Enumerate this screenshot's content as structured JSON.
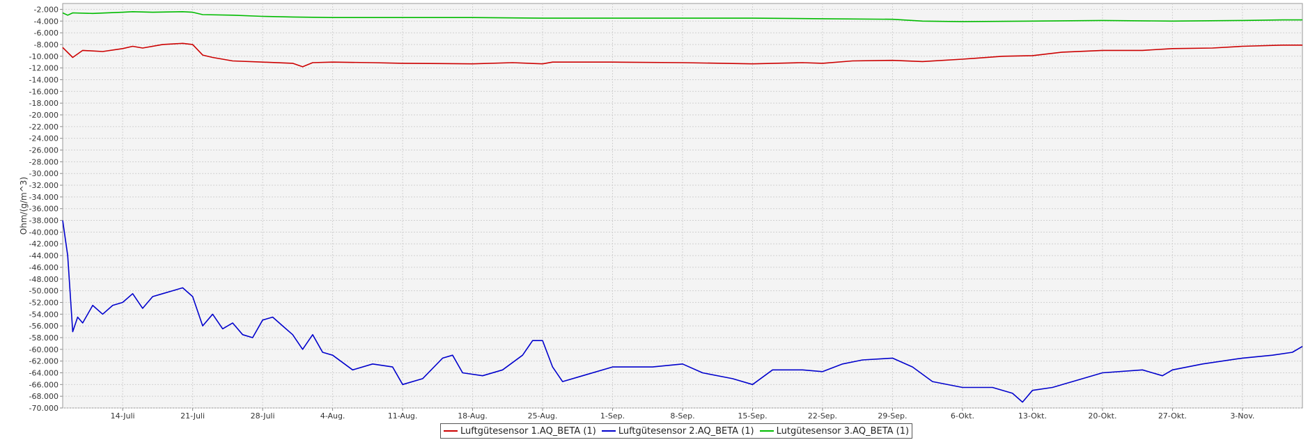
{
  "chart_data": {
    "type": "line",
    "ylabel": "Ohm/(g/m^3)",
    "xlabel": "",
    "title": "",
    "ylim": [
      -70000,
      -1000
    ],
    "y_ticks": [
      -2000,
      -4000,
      -6000,
      -8000,
      -10000,
      -12000,
      -14000,
      -16000,
      -18000,
      -20000,
      -22000,
      -24000,
      -26000,
      -28000,
      -30000,
      -32000,
      -34000,
      -36000,
      -38000,
      -40000,
      -42000,
      -44000,
      -46000,
      -48000,
      -50000,
      -52000,
      -54000,
      -56000,
      -58000,
      -60000,
      -62000,
      -64000,
      -66000,
      -68000,
      -70000
    ],
    "y_tick_labels": [
      "-2.000",
      "-4.000",
      "-6.000",
      "-8.000",
      "-10.000",
      "-12.000",
      "-14.000",
      "-16.000",
      "-18.000",
      "-20.000",
      "-22.000",
      "-24.000",
      "-26.000",
      "-28.000",
      "-30.000",
      "-32.000",
      "-34.000",
      "-36.000",
      "-38.000",
      "-40.000",
      "-42.000",
      "-44.000",
      "-46.000",
      "-48.000",
      "-50.000",
      "-52.000",
      "-54.000",
      "-56.000",
      "-58.000",
      "-60.000",
      "-62.000",
      "-64.000",
      "-66.000",
      "-68.000",
      "-70.000"
    ],
    "xlim": [
      "2014-07-08",
      "2014-11-09"
    ],
    "x_ticks": [
      "2014-07-14",
      "2014-07-21",
      "2014-07-28",
      "2014-08-04",
      "2014-08-11",
      "2014-08-18",
      "2014-08-25",
      "2014-09-01",
      "2014-09-08",
      "2014-09-15",
      "2014-09-22",
      "2014-09-29",
      "2014-10-06",
      "2014-10-13",
      "2014-10-20",
      "2014-10-27",
      "2014-11-03"
    ],
    "x_tick_labels": [
      "14-Juli",
      "21-Juli",
      "28-Juli",
      "4-Aug.",
      "11-Aug.",
      "18-Aug.",
      "25-Aug.",
      "1-Sep.",
      "8-Sep.",
      "15-Sep.",
      "22-Sep.",
      "29-Sep.",
      "6-Okt.",
      "13-Okt.",
      "20-Okt.",
      "27-Okt.",
      "3-Nov."
    ],
    "grid": true,
    "legend_position": "bottom",
    "series": [
      {
        "name": "Luftgütesensor 1.AQ_BETA (1)",
        "color": "#cc0000",
        "points": [
          [
            "2014-07-08",
            -8500
          ],
          [
            "2014-07-09",
            -10200
          ],
          [
            "2014-07-10",
            -9000
          ],
          [
            "2014-07-12",
            -9200
          ],
          [
            "2014-07-14",
            -8700
          ],
          [
            "2014-07-15",
            -8300
          ],
          [
            "2014-07-16",
            -8600
          ],
          [
            "2014-07-18",
            -8000
          ],
          [
            "2014-07-20",
            -7800
          ],
          [
            "2014-07-21",
            -8000
          ],
          [
            "2014-07-22",
            -9800
          ],
          [
            "2014-07-23",
            -10200
          ],
          [
            "2014-07-25",
            -10800
          ],
          [
            "2014-07-28",
            -11000
          ],
          [
            "2014-07-31",
            -11200
          ],
          [
            "2014-08-01",
            -11800
          ],
          [
            "2014-08-02",
            -11100
          ],
          [
            "2014-08-04",
            -11000
          ],
          [
            "2014-08-08",
            -11100
          ],
          [
            "2014-08-11",
            -11200
          ],
          [
            "2014-08-18",
            -11300
          ],
          [
            "2014-08-22",
            -11100
          ],
          [
            "2014-08-25",
            -11300
          ],
          [
            "2014-08-26",
            -11000
          ],
          [
            "2014-09-01",
            -11000
          ],
          [
            "2014-09-08",
            -11100
          ],
          [
            "2014-09-15",
            -11300
          ],
          [
            "2014-09-20",
            -11100
          ],
          [
            "2014-09-22",
            -11200
          ],
          [
            "2014-09-25",
            -10800
          ],
          [
            "2014-09-29",
            -10700
          ],
          [
            "2014-10-02",
            -10900
          ],
          [
            "2014-10-06",
            -10500
          ],
          [
            "2014-10-10",
            -10000
          ],
          [
            "2014-10-13",
            -9900
          ],
          [
            "2014-10-16",
            -9300
          ],
          [
            "2014-10-20",
            -9000
          ],
          [
            "2014-10-24",
            -9000
          ],
          [
            "2014-10-27",
            -8700
          ],
          [
            "2014-10-31",
            -8600
          ],
          [
            "2014-11-03",
            -8300
          ],
          [
            "2014-11-07",
            -8100
          ],
          [
            "2014-11-09",
            -8100
          ]
        ]
      },
      {
        "name": "Luftgütesensor 2.AQ_BETA (1)",
        "color": "#0000cc",
        "points": [
          [
            "2014-07-08",
            -38000
          ],
          [
            "2014-07-08T12:00",
            -44000
          ],
          [
            "2014-07-09",
            -57000
          ],
          [
            "2014-07-09T12:00",
            -54500
          ],
          [
            "2014-07-10",
            -55500
          ],
          [
            "2014-07-11",
            -52500
          ],
          [
            "2014-07-12",
            -54000
          ],
          [
            "2014-07-13",
            -52500
          ],
          [
            "2014-07-14",
            -52000
          ],
          [
            "2014-07-15",
            -50500
          ],
          [
            "2014-07-16",
            -53000
          ],
          [
            "2014-07-17",
            -51000
          ],
          [
            "2014-07-18",
            -50500
          ],
          [
            "2014-07-19",
            -50000
          ],
          [
            "2014-07-20",
            -49500
          ],
          [
            "2014-07-21",
            -51000
          ],
          [
            "2014-07-22",
            -56000
          ],
          [
            "2014-07-23",
            -54000
          ],
          [
            "2014-07-24",
            -56500
          ],
          [
            "2014-07-25",
            -55500
          ],
          [
            "2014-07-26",
            -57500
          ],
          [
            "2014-07-27",
            -58000
          ],
          [
            "2014-07-28",
            -55000
          ],
          [
            "2014-07-29",
            -54500
          ],
          [
            "2014-07-30",
            -56000
          ],
          [
            "2014-07-31",
            -57500
          ],
          [
            "2014-08-01",
            -60000
          ],
          [
            "2014-08-02",
            -57500
          ],
          [
            "2014-08-03",
            -60500
          ],
          [
            "2014-08-04",
            -61000
          ],
          [
            "2014-08-06",
            -63500
          ],
          [
            "2014-08-08",
            -62500
          ],
          [
            "2014-08-10",
            -63000
          ],
          [
            "2014-08-11",
            -66000
          ],
          [
            "2014-08-13",
            -65000
          ],
          [
            "2014-08-15",
            -61500
          ],
          [
            "2014-08-16",
            -61000
          ],
          [
            "2014-08-17",
            -64000
          ],
          [
            "2014-08-19",
            -64500
          ],
          [
            "2014-08-21",
            -63500
          ],
          [
            "2014-08-23",
            -61000
          ],
          [
            "2014-08-24",
            -58500
          ],
          [
            "2014-08-25",
            -58500
          ],
          [
            "2014-08-26",
            -63000
          ],
          [
            "2014-08-27",
            -65500
          ],
          [
            "2014-08-29",
            -64500
          ],
          [
            "2014-09-01",
            -63000
          ],
          [
            "2014-09-05",
            -63000
          ],
          [
            "2014-09-08",
            -62500
          ],
          [
            "2014-09-10",
            -64000
          ],
          [
            "2014-09-13",
            -65000
          ],
          [
            "2014-09-15",
            -66000
          ],
          [
            "2014-09-17",
            -63500
          ],
          [
            "2014-09-20",
            -63500
          ],
          [
            "2014-09-22",
            -63800
          ],
          [
            "2014-09-24",
            -62500
          ],
          [
            "2014-09-26",
            -61800
          ],
          [
            "2014-09-29",
            -61500
          ],
          [
            "2014-10-01",
            -63000
          ],
          [
            "2014-10-03",
            -65500
          ],
          [
            "2014-10-06",
            -66500
          ],
          [
            "2014-10-09",
            -66500
          ],
          [
            "2014-10-11",
            -67500
          ],
          [
            "2014-10-12",
            -69000
          ],
          [
            "2014-10-13",
            -67000
          ],
          [
            "2014-10-15",
            -66500
          ],
          [
            "2014-10-17",
            -65500
          ],
          [
            "2014-10-20",
            -64000
          ],
          [
            "2014-10-24",
            -63500
          ],
          [
            "2014-10-26",
            -64500
          ],
          [
            "2014-10-27",
            -63500
          ],
          [
            "2014-10-30",
            -62500
          ],
          [
            "2014-11-03",
            -61500
          ],
          [
            "2014-11-06",
            -61000
          ],
          [
            "2014-11-08",
            -60500
          ],
          [
            "2014-11-09",
            -59500
          ]
        ]
      },
      {
        "name": "Lutgütesensor 3.AQ_BETA (1)",
        "color": "#00bb00",
        "points": [
          [
            "2014-07-08",
            -2600
          ],
          [
            "2014-07-08T12:00",
            -3000
          ],
          [
            "2014-07-09",
            -2600
          ],
          [
            "2014-07-11",
            -2700
          ],
          [
            "2014-07-14",
            -2500
          ],
          [
            "2014-07-15",
            -2400
          ],
          [
            "2014-07-17",
            -2500
          ],
          [
            "2014-07-20",
            -2400
          ],
          [
            "2014-07-21",
            -2500
          ],
          [
            "2014-07-22",
            -2900
          ],
          [
            "2014-07-25",
            -3000
          ],
          [
            "2014-07-28",
            -3200
          ],
          [
            "2014-07-31",
            -3300
          ],
          [
            "2014-08-04",
            -3400
          ],
          [
            "2014-08-11",
            -3400
          ],
          [
            "2014-08-18",
            -3400
          ],
          [
            "2014-08-25",
            -3500
          ],
          [
            "2014-09-01",
            -3500
          ],
          [
            "2014-09-08",
            -3500
          ],
          [
            "2014-09-15",
            -3500
          ],
          [
            "2014-09-22",
            -3600
          ],
          [
            "2014-09-29",
            -3700
          ],
          [
            "2014-10-02",
            -4000
          ],
          [
            "2014-10-06",
            -4100
          ],
          [
            "2014-10-13",
            -4000
          ],
          [
            "2014-10-20",
            -3900
          ],
          [
            "2014-10-27",
            -4000
          ],
          [
            "2014-11-03",
            -3900
          ],
          [
            "2014-11-07",
            -3800
          ],
          [
            "2014-11-09",
            -3800
          ]
        ]
      }
    ]
  }
}
